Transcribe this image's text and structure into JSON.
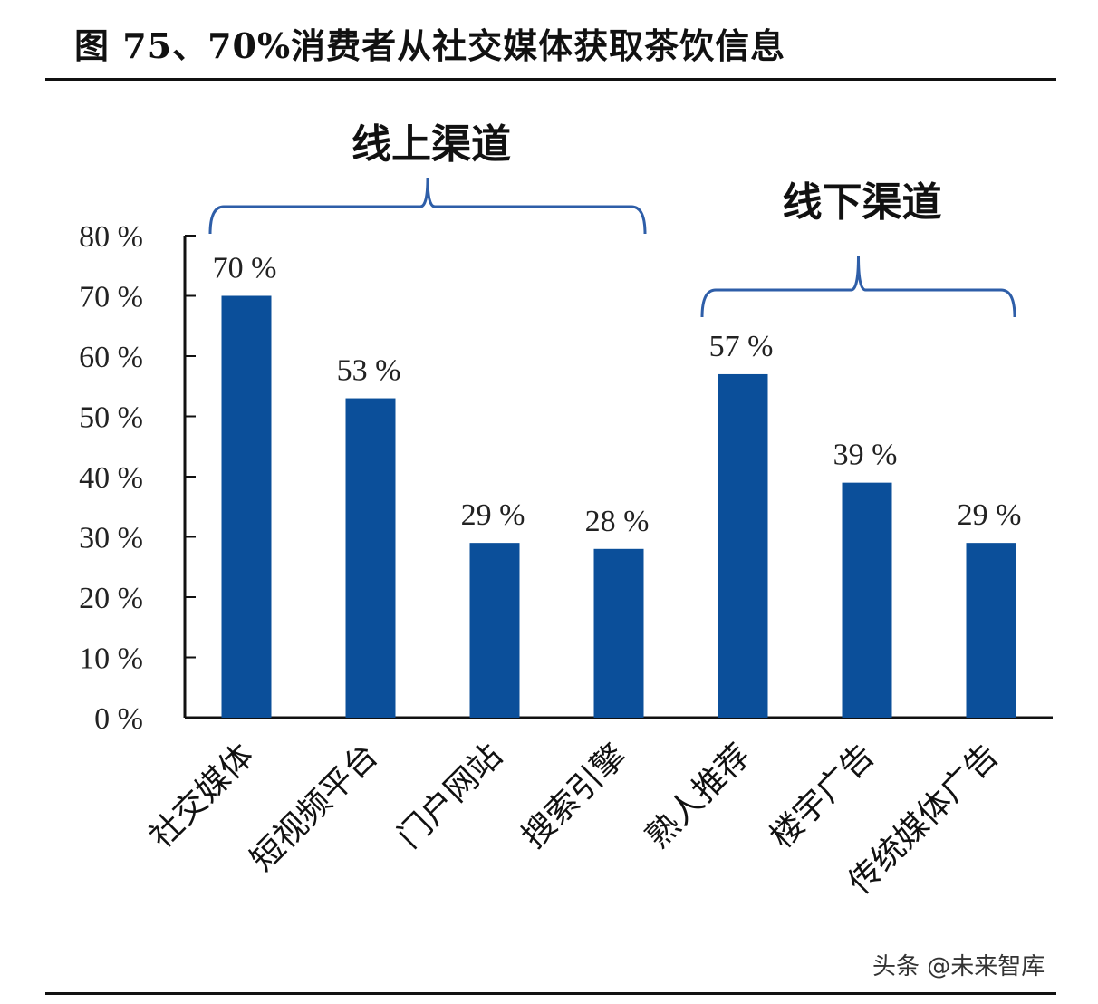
{
  "chart_data": {
    "type": "bar",
    "title": "图 75、70%消费者从社交媒体获取茶饮信息",
    "categories": [
      "社交媒体",
      "短视频平台",
      "门户网站",
      "搜索引擎",
      "熟人推荐",
      "楼宇广告",
      "传统媒体广告"
    ],
    "values": [
      70,
      53,
      29,
      28,
      57,
      39,
      29
    ],
    "value_labels": [
      "70 %",
      "53 %",
      "29 %",
      "28 %",
      "57 %",
      "39 %",
      "29 %"
    ],
    "yticks": [
      "0 %",
      "10 %",
      "20 %",
      "30 %",
      "40 %",
      "50 %",
      "60 %",
      "70 %",
      "80 %"
    ],
    "ylim": [
      0,
      80
    ],
    "xlabel": "",
    "ylabel": "",
    "groups": [
      {
        "label": "线上渠道",
        "from": 0,
        "to": 3
      },
      {
        "label": "线下渠道",
        "from": 4,
        "to": 6
      }
    ],
    "bar_color": "#0B4F9A",
    "bracket_color": "#2E5EA8"
  },
  "watermark": "头条 @未来智库"
}
